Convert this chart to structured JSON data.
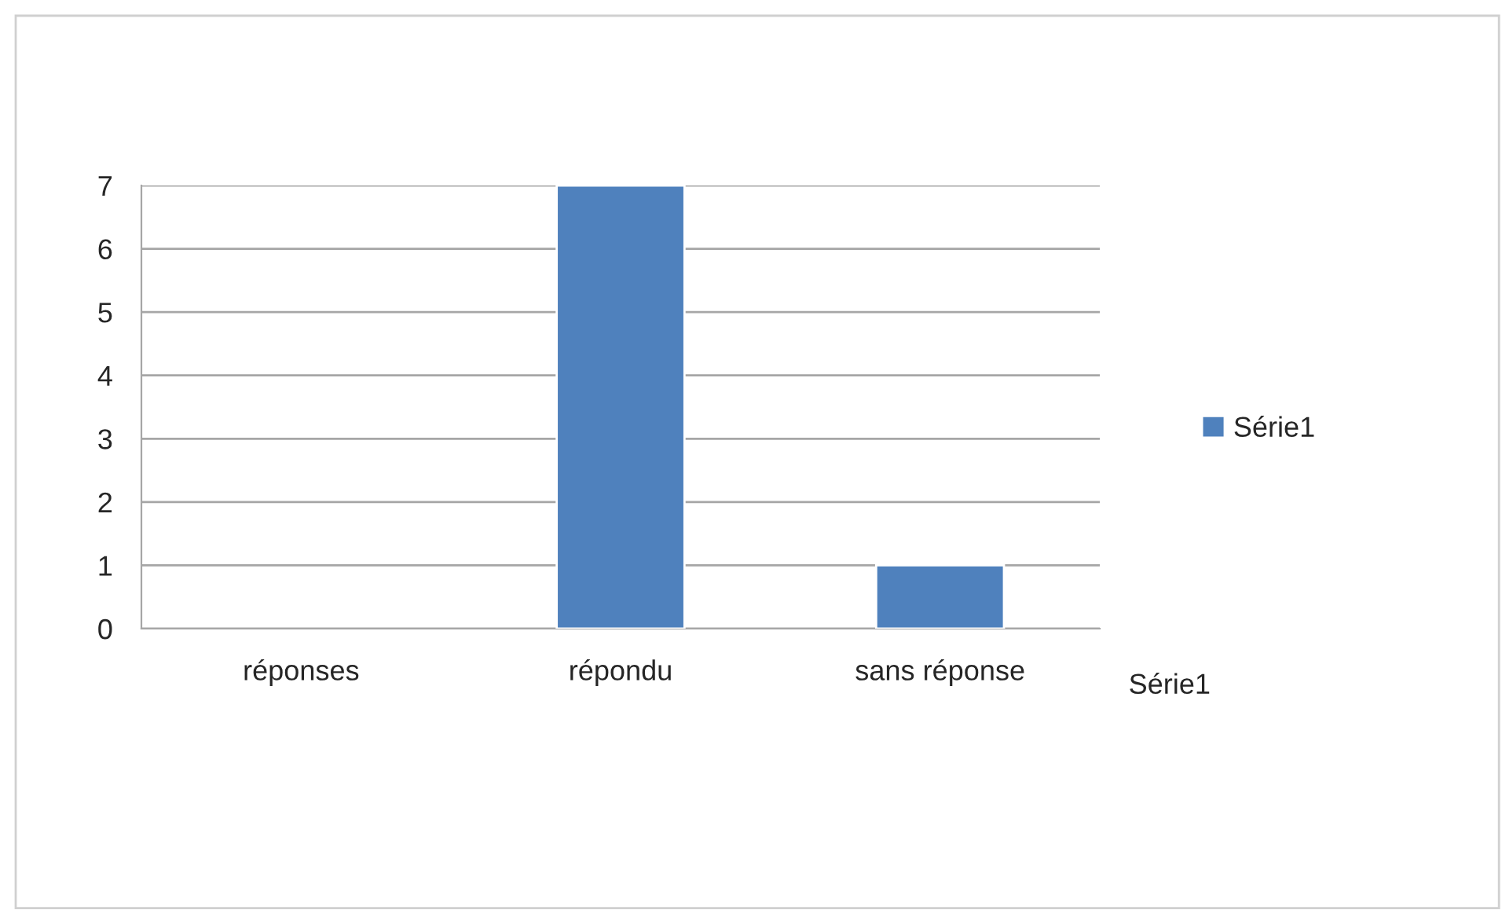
{
  "chart_data": {
    "type": "bar",
    "categories": [
      "réponses",
      "répondu",
      "sans réponse"
    ],
    "series": [
      {
        "name": "Série1",
        "color": "#4f81bd",
        "values": [
          null,
          7,
          1
        ]
      }
    ],
    "ylim": [
      0,
      7
    ],
    "yticks": [
      0,
      1,
      2,
      3,
      4,
      5,
      6,
      7
    ],
    "grid": "y",
    "legend": "right",
    "annotations": [
      "Série1"
    ]
  }
}
